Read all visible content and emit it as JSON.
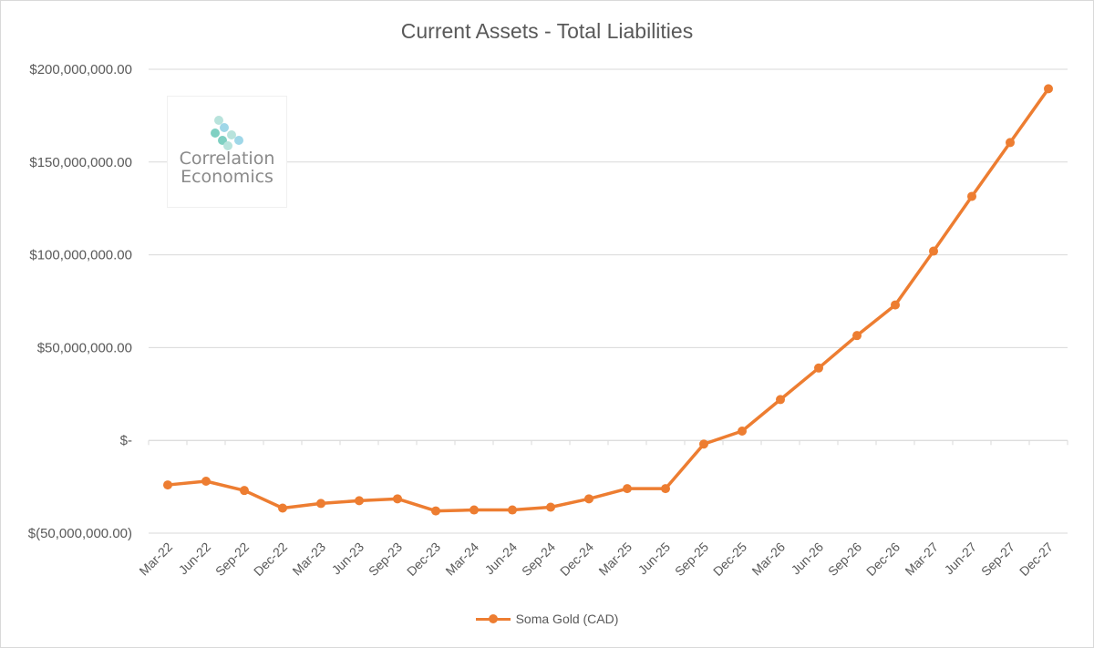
{
  "chart_data": {
    "type": "line",
    "title": "Current Assets - Total Liabilities",
    "xlabel": "",
    "ylabel": "",
    "categories": [
      "Mar-22",
      "Jun-22",
      "Sep-22",
      "Dec-22",
      "Mar-23",
      "Jun-23",
      "Sep-23",
      "Dec-23",
      "Mar-24",
      "Jun-24",
      "Sep-24",
      "Dec-24",
      "Mar-25",
      "Jun-25",
      "Sep-25",
      "Dec-25",
      "Mar-26",
      "Jun-26",
      "Sep-26",
      "Dec-26",
      "Mar-27",
      "Jun-27",
      "Sep-27",
      "Dec-27"
    ],
    "series": [
      {
        "name": "Soma Gold (CAD)",
        "color": "#ED7D31",
        "values": [
          -24000000,
          -22000000,
          -27000000,
          -36500000,
          -34000000,
          -32500000,
          -31500000,
          -38000000,
          -37500000,
          -37500000,
          -36000000,
          -31500000,
          -26000000,
          -26000000,
          -2000000,
          5000000,
          22000000,
          39000000,
          56500000,
          73000000,
          102000000,
          131500000,
          160500000,
          189500000
        ]
      }
    ],
    "ylim": [
      -50000000,
      200000000
    ],
    "yticks": [
      200000000,
      150000000,
      100000000,
      50000000,
      0,
      -50000000
    ],
    "ytick_labels": [
      "$200,000,000.00",
      "$150,000,000.00",
      "$100,000,000.00",
      "$50,000,000.00",
      "$-",
      "$(50,000,000.00)"
    ],
    "grid": true,
    "legend_position": "bottom"
  },
  "watermark": {
    "line1": "Correlation",
    "line2": "Economics",
    "colors": [
      "#7fd0c2",
      "#b8e3dc",
      "#9fd7e8"
    ]
  }
}
